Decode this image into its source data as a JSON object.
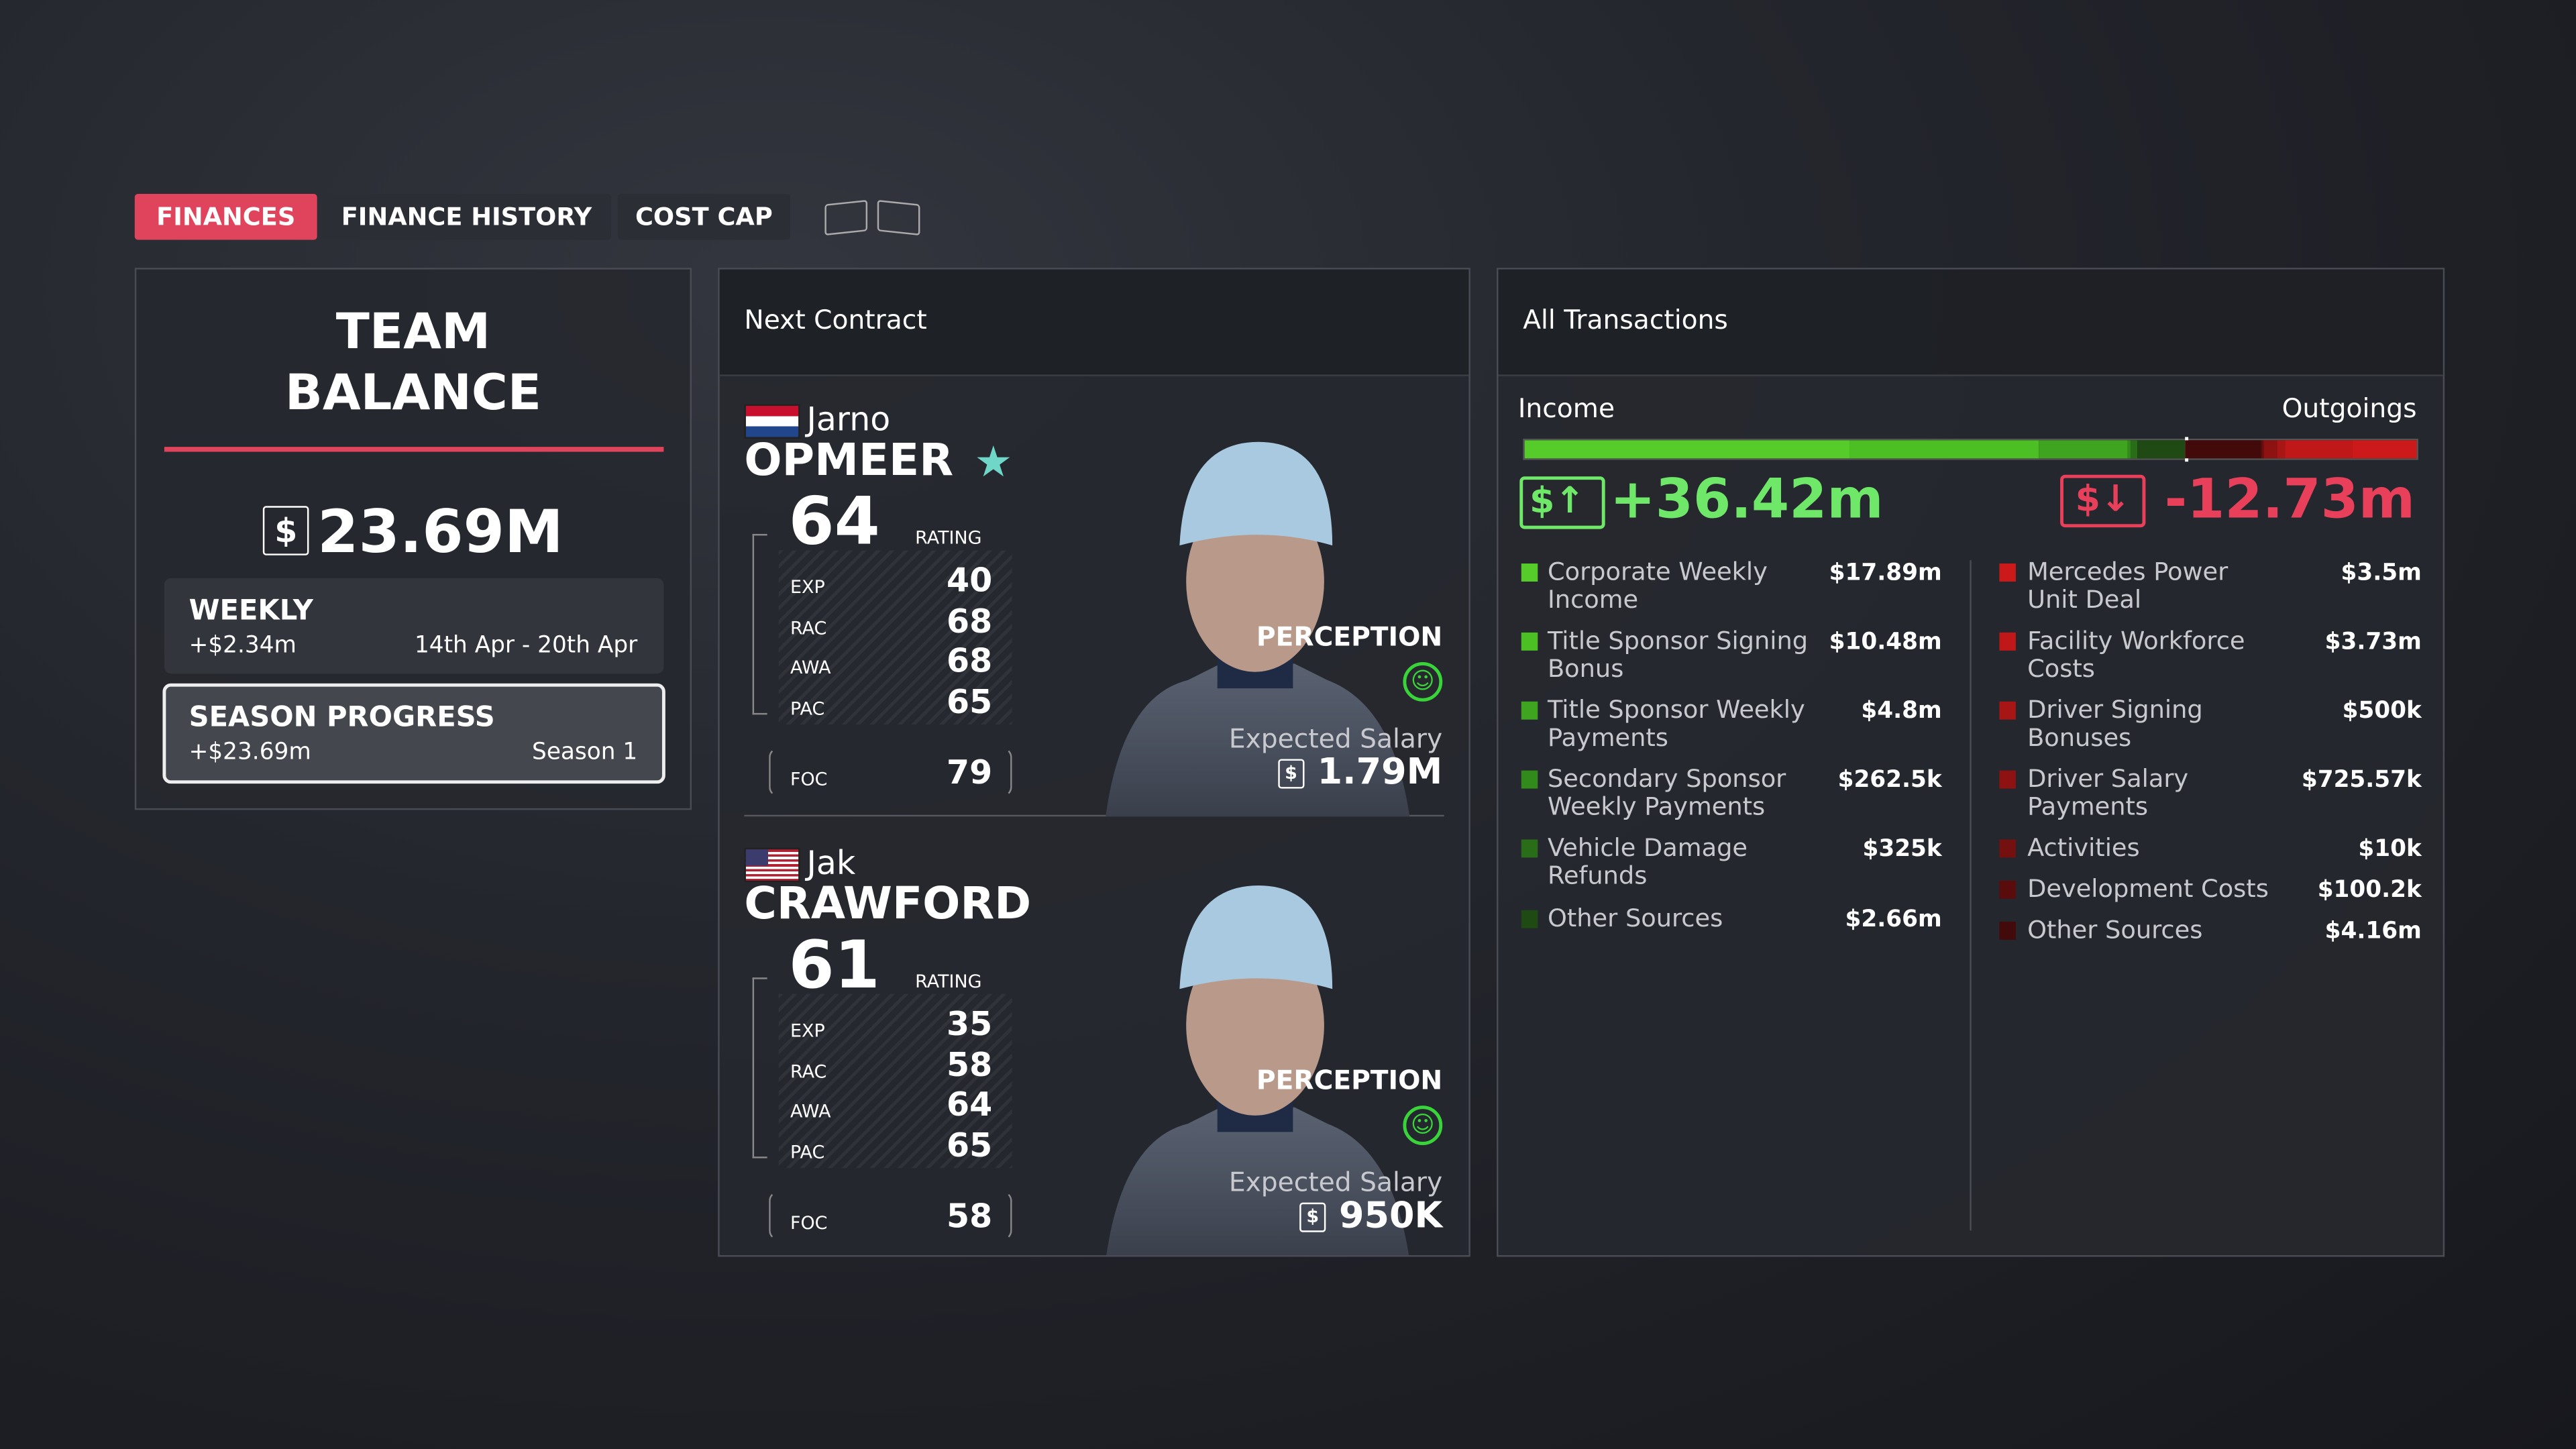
{
  "tabs": [
    {
      "label": "FINANCES",
      "active": true
    },
    {
      "label": "FINANCE HISTORY",
      "active": false
    },
    {
      "label": "COST CAP",
      "active": false
    }
  ],
  "balance": {
    "title_line1": "TEAM",
    "title_line2": "BALANCE",
    "amount": "23.69M",
    "currency_icon": "dollar-icon",
    "weekly": {
      "label": "WEEKLY",
      "amount": "+$2.34m",
      "period": "14th Apr - 20th Apr"
    },
    "season": {
      "label": "SEASON PROGRESS",
      "amount": "+$23.69m",
      "season": "Season 1"
    }
  },
  "contract": {
    "title": "Next Contract",
    "drivers": [
      {
        "first": "Jarno",
        "last": "OPMEER",
        "flag": "netherlands",
        "badge": "star-icon",
        "rating": "64",
        "rating_label": "RATING",
        "stats": [
          {
            "k": "EXP",
            "v": "40"
          },
          {
            "k": "RAC",
            "v": "68"
          },
          {
            "k": "AWA",
            "v": "68"
          },
          {
            "k": "PAC",
            "v": "65"
          }
        ],
        "foc": {
          "k": "FOC",
          "v": "79"
        },
        "perception_label": "PERCEPTION",
        "perception": "happy",
        "salary_label": "Expected Salary",
        "salary": "1.79M"
      },
      {
        "first": "Jak",
        "last": "CRAWFORD",
        "flag": "usa",
        "rating": "61",
        "rating_label": "RATING",
        "stats": [
          {
            "k": "EXP",
            "v": "35"
          },
          {
            "k": "RAC",
            "v": "58"
          },
          {
            "k": "AWA",
            "v": "64"
          },
          {
            "k": "PAC",
            "v": "65"
          }
        ],
        "foc": {
          "k": "FOC",
          "v": "58"
        },
        "perception_label": "PERCEPTION",
        "perception": "happy",
        "salary_label": "Expected Salary",
        "salary": "950K"
      }
    ]
  },
  "transactions": {
    "title": "All Transactions",
    "income_label": "Income",
    "outgoings_label": "Outgoings",
    "income_total": "+36.42m",
    "outgoings_total": "-12.73m",
    "income_color": "#6fe86a",
    "outgoings_color": "#e8405a",
    "income": [
      {
        "label": "Corporate Weekly Income",
        "value": "$17.89m",
        "amount_m": 17.89,
        "color": "#55cc2a"
      },
      {
        "label": "Title Sponsor Signing Bonus",
        "value": "$10.48m",
        "amount_m": 10.48,
        "color": "#4bbf24"
      },
      {
        "label": "Title Sponsor Weekly Payments",
        "value": "$4.8m",
        "amount_m": 4.8,
        "color": "#3fa520"
      },
      {
        "label": "Secondary Sponsor Weekly Payments",
        "value": "$262.5k",
        "amount_m": 0.2625,
        "color": "#338a1c"
      },
      {
        "label": "Vehicle Damage Refunds",
        "value": "$325k",
        "amount_m": 0.325,
        "color": "#2a6d18"
      },
      {
        "label": "Other Sources",
        "value": "$2.66m",
        "amount_m": 2.66,
        "color": "#1f4a14"
      }
    ],
    "outgoings": [
      {
        "label": "Mercedes Power Unit Deal",
        "value": "$3.5m",
        "amount_m": 3.5,
        "color": "#cc1a1a"
      },
      {
        "label": "Facility Workforce Costs",
        "value": "$3.73m",
        "amount_m": 3.73,
        "color": "#c01818"
      },
      {
        "label": "Driver Signing Bonuses",
        "value": "$500k",
        "amount_m": 0.5,
        "color": "#a81515"
      },
      {
        "label": "Driver Salary Payments",
        "value": "$725.57k",
        "amount_m": 0.72557,
        "color": "#8f1212"
      },
      {
        "label": "Activities",
        "value": "$10k",
        "amount_m": 0.01,
        "color": "#741010"
      },
      {
        "label": "Development Costs",
        "value": "$100.2k",
        "amount_m": 0.1002,
        "color": "#5a0c0c"
      },
      {
        "label": "Other Sources",
        "value": "$4.16m",
        "amount_m": 4.16,
        "color": "#420a0a"
      }
    ]
  }
}
